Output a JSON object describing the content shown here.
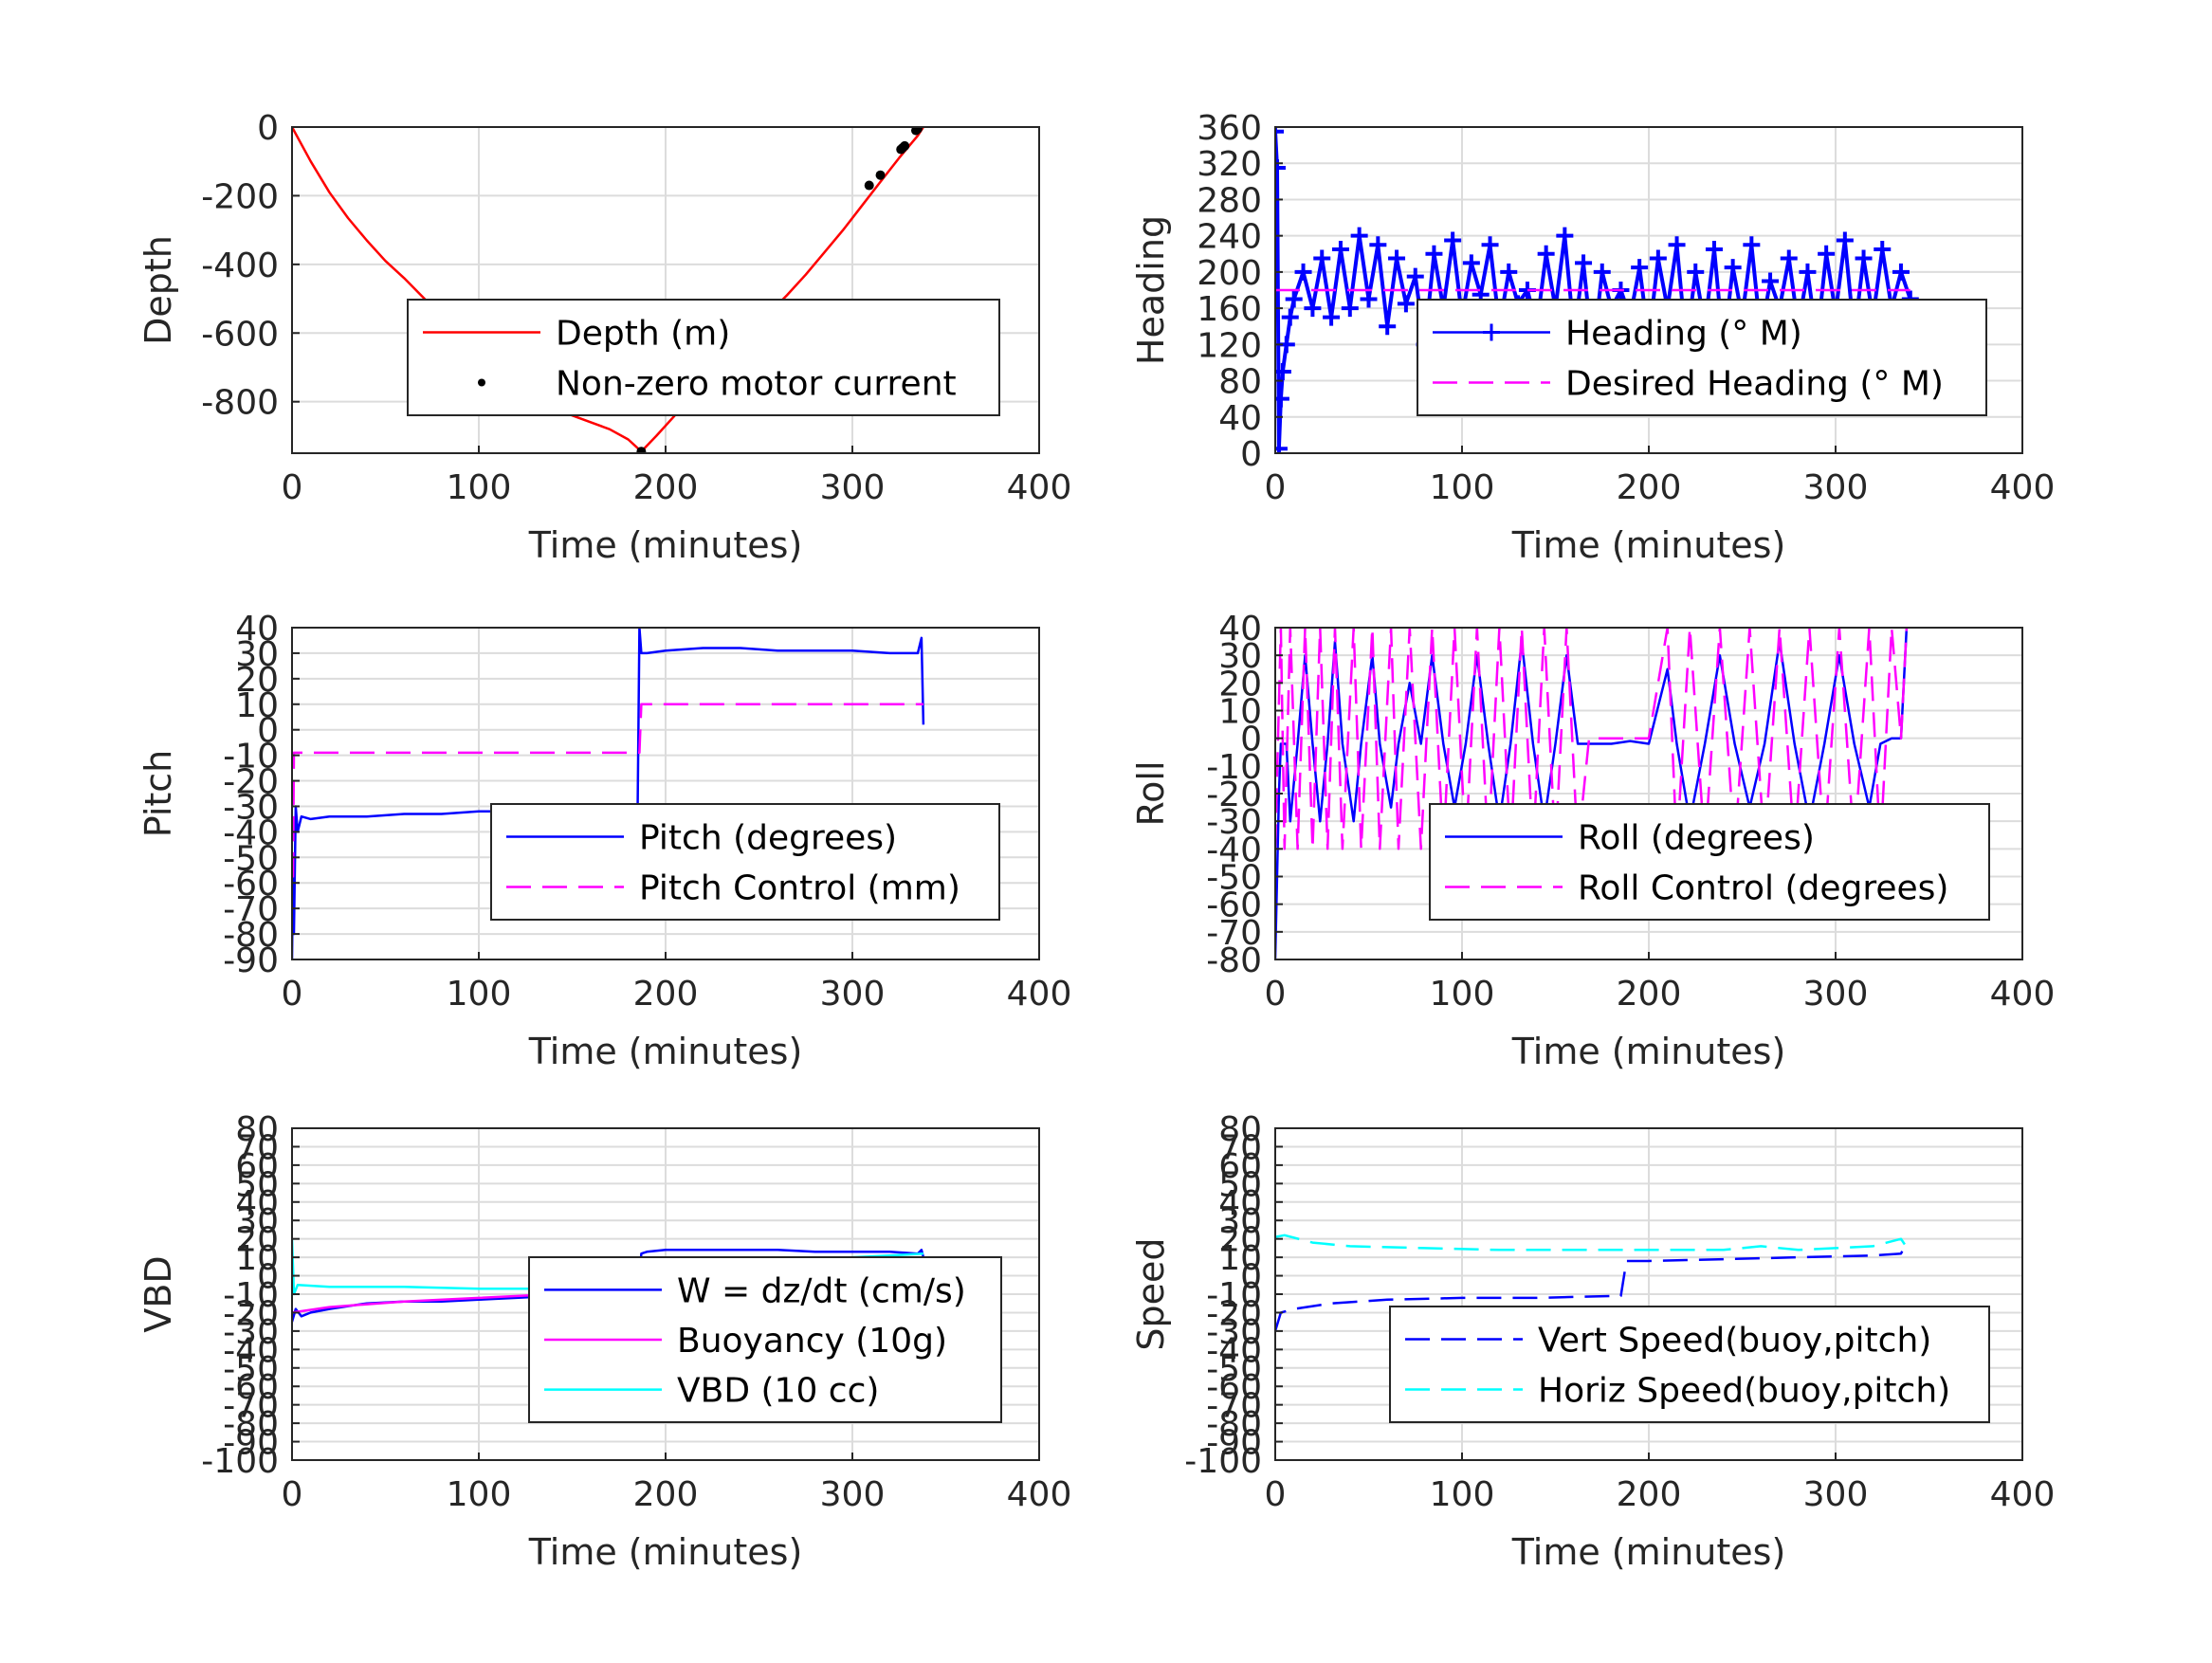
{
  "figure": {
    "background": "#ffffff",
    "grid_color": "#dcdcdc",
    "axis_color": "#262626"
  },
  "chart_data": [
    {
      "id": "depth",
      "type": "line",
      "xlabel": "Time (minutes)",
      "ylabel": "Depth",
      "xlim": [
        0,
        400
      ],
      "ylim": [
        -950,
        0
      ],
      "xticks": [
        0,
        100,
        200,
        300,
        400
      ],
      "yticks": [
        -800,
        -600,
        -400,
        -200,
        0
      ],
      "grid": true,
      "legend": {
        "placement": "center-right"
      },
      "series": [
        {
          "name": "Depth (m)",
          "style": "solid",
          "color": "#ff0000",
          "marker": "none",
          "x": [
            0,
            10,
            20,
            30,
            40,
            50,
            60,
            70,
            80,
            90,
            100,
            110,
            120,
            130,
            140,
            150,
            160,
            170,
            180,
            187,
            195,
            205,
            215,
            225,
            235,
            245,
            255,
            265,
            275,
            285,
            295,
            305,
            315,
            325,
            335,
            338
          ],
          "y": [
            0,
            -100,
            -190,
            -265,
            -330,
            -390,
            -440,
            -495,
            -550,
            -600,
            -650,
            -695,
            -740,
            -780,
            -815,
            -840,
            -860,
            -880,
            -910,
            -945,
            -900,
            -840,
            -780,
            -720,
            -660,
            -600,
            -545,
            -490,
            -430,
            -365,
            -300,
            -230,
            -160,
            -90,
            -25,
            0
          ]
        },
        {
          "name": "Non-zero motor current",
          "style": "none",
          "color": "#000000",
          "marker": "dot",
          "x": [
            187,
            253,
            309,
            315,
            326,
            327,
            328,
            334,
            335
          ],
          "y": [
            -945,
            -530,
            -170,
            -140,
            -65,
            -60,
            -55,
            -10,
            -5
          ]
        }
      ]
    },
    {
      "id": "heading",
      "type": "line",
      "xlabel": "Time (minutes)",
      "ylabel": "Heading",
      "xlim": [
        0,
        400
      ],
      "ylim": [
        0,
        360
      ],
      "xticks": [
        0,
        100,
        200,
        300,
        400
      ],
      "yticks": [
        0,
        40,
        80,
        120,
        160,
        200,
        240,
        280,
        320,
        360
      ],
      "grid": true,
      "legend": {
        "placement": "center-right"
      },
      "series": [
        {
          "name": "Heading (° M)",
          "style": "marker",
          "color": "#0000ff",
          "marker": "plus",
          "x": [
            0,
            1,
            2,
            3,
            4,
            6,
            8,
            10,
            15,
            20,
            25,
            30,
            35,
            40,
            45,
            50,
            55,
            60,
            65,
            70,
            75,
            80,
            85,
            90,
            95,
            100,
            105,
            110,
            115,
            120,
            125,
            130,
            135,
            140,
            145,
            150,
            155,
            160,
            165,
            170,
            175,
            180,
            185,
            190,
            195,
            200,
            205,
            210,
            215,
            220,
            225,
            230,
            235,
            240,
            245,
            250,
            255,
            260,
            265,
            270,
            275,
            280,
            285,
            290,
            295,
            300,
            305,
            310,
            315,
            320,
            325,
            330,
            335,
            340
          ],
          "y": [
            355,
            315,
            5,
            60,
            90,
            120,
            150,
            170,
            200,
            160,
            215,
            150,
            225,
            160,
            240,
            170,
            230,
            140,
            215,
            165,
            195,
            120,
            220,
            160,
            235,
            150,
            210,
            175,
            230,
            140,
            200,
            165,
            180,
            140,
            220,
            160,
            240,
            130,
            210,
            110,
            200,
            160,
            180,
            150,
            205,
            125,
            215,
            160,
            230,
            120,
            200,
            140,
            225,
            115,
            205,
            150,
            230,
            130,
            190,
            160,
            215,
            140,
            200,
            125,
            220,
            155,
            235,
            130,
            215,
            150,
            225,
            160,
            200,
            170
          ]
        },
        {
          "name": "Desired Heading (° M)",
          "style": "dashed",
          "color": "#ff00ff",
          "marker": "none",
          "x": [
            0,
            340
          ],
          "y": [
            180,
            180
          ]
        }
      ]
    },
    {
      "id": "pitch",
      "type": "line",
      "xlabel": "Time (minutes)",
      "ylabel": "Pitch",
      "xlim": [
        0,
        400
      ],
      "ylim": [
        -90,
        40
      ],
      "xticks": [
        0,
        100,
        200,
        300,
        400
      ],
      "yticks": [
        -90,
        -80,
        -70,
        -60,
        -50,
        -40,
        -30,
        -20,
        -10,
        0,
        10,
        20,
        30,
        40
      ],
      "grid": true,
      "legend": {
        "placement": "center-right"
      },
      "series": [
        {
          "name": "Pitch (degrees)",
          "style": "solid",
          "color": "#0000ff",
          "marker": "none",
          "x": [
            0,
            0.5,
            1,
            2,
            3,
            5,
            10,
            20,
            40,
            60,
            80,
            100,
            120,
            140,
            160,
            180,
            185,
            186,
            187,
            190,
            200,
            220,
            240,
            260,
            280,
            300,
            320,
            335,
            337,
            338
          ],
          "y": [
            -90,
            -55,
            -80,
            -30,
            -40,
            -34,
            -35,
            -34,
            -34,
            -33,
            -33,
            -32,
            -32,
            -31,
            -31,
            -31,
            -32,
            40,
            30,
            30,
            31,
            32,
            32,
            31,
            31,
            31,
            30,
            30,
            36,
            2
          ]
        },
        {
          "name": "Pitch Control (mm)",
          "style": "dashed",
          "color": "#ff00ff",
          "marker": "none",
          "x": [
            0,
            0.5,
            1,
            186,
            187,
            338
          ],
          "y": [
            -20,
            -60,
            -9,
            -9,
            10,
            10
          ]
        }
      ]
    },
    {
      "id": "roll",
      "type": "line",
      "xlabel": "Time (minutes)",
      "ylabel": "Roll",
      "xlim": [
        0,
        400
      ],
      "ylim": [
        -80,
        40
      ],
      "xticks": [
        0,
        100,
        200,
        300,
        400
      ],
      "yticks": [
        -80,
        -70,
        -60,
        -50,
        -40,
        -30,
        -20,
        -10,
        0,
        10,
        20,
        30,
        40
      ],
      "grid": true,
      "legend": {
        "placement": "center-right"
      },
      "series": [
        {
          "name": "Roll (degrees)",
          "style": "solid",
          "color": "#0000ff",
          "marker": "none",
          "x": [
            0,
            2,
            3,
            6,
            8,
            12,
            16,
            20,
            24,
            28,
            32,
            36,
            42,
            46,
            52,
            56,
            62,
            66,
            72,
            78,
            84,
            90,
            96,
            102,
            108,
            114,
            120,
            126,
            132,
            138,
            144,
            150,
            156,
            162,
            168,
            174,
            180,
            190,
            200,
            210,
            215,
            222,
            230,
            238,
            246,
            254,
            262,
            270,
            278,
            286,
            294,
            302,
            310,
            318,
            324,
            330,
            335,
            338
          ],
          "y": [
            -80,
            -20,
            -2,
            -2,
            -30,
            -2,
            30,
            -2,
            -30,
            -2,
            35,
            -2,
            -30,
            -2,
            30,
            -2,
            -25,
            -2,
            20,
            -2,
            30,
            -2,
            -25,
            -2,
            30,
            -2,
            -30,
            -2,
            35,
            -2,
            -30,
            -2,
            30,
            -2,
            -2,
            -2,
            -2,
            -1,
            -2,
            25,
            -2,
            -30,
            -2,
            30,
            -2,
            -25,
            -2,
            35,
            -2,
            -30,
            -2,
            30,
            -2,
            -25,
            -2,
            0,
            0,
            40
          ]
        },
        {
          "name": "Roll Control (degrees)",
          "style": "dashed",
          "color": "#ff00ff",
          "marker": "none",
          "x": [
            0,
            3,
            5,
            8,
            12,
            16,
            20,
            24,
            28,
            32,
            36,
            42,
            46,
            52,
            56,
            62,
            66,
            72,
            78,
            84,
            90,
            96,
            102,
            108,
            114,
            120,
            126,
            132,
            138,
            144,
            150,
            156,
            162,
            168,
            174,
            180,
            190,
            200,
            210,
            215,
            222,
            230,
            238,
            246,
            254,
            262,
            270,
            278,
            286,
            294,
            302,
            310,
            318,
            324,
            330,
            335,
            338
          ],
          "y": [
            -40,
            40,
            -40,
            40,
            -40,
            40,
            -40,
            40,
            -40,
            40,
            -40,
            40,
            -40,
            40,
            -40,
            40,
            -40,
            40,
            -40,
            40,
            -40,
            40,
            -40,
            40,
            -40,
            40,
            -40,
            40,
            -40,
            40,
            -40,
            40,
            -40,
            0,
            0,
            0,
            0,
            0,
            40,
            -40,
            40,
            -40,
            40,
            -40,
            40,
            -40,
            40,
            -40,
            40,
            -40,
            40,
            -40,
            40,
            -40,
            40,
            0,
            40
          ]
        }
      ]
    },
    {
      "id": "vbd",
      "type": "line",
      "xlabel": "Time (minutes)",
      "ylabel": "VBD",
      "xlim": [
        0,
        400
      ],
      "ylim": [
        -100,
        80
      ],
      "xticks": [
        0,
        100,
        200,
        300,
        400
      ],
      "yticks": [
        -100,
        -90,
        -80,
        -70,
        -60,
        -50,
        -40,
        -30,
        -20,
        -10,
        0,
        10,
        20,
        30,
        40,
        50,
        60,
        70,
        80
      ],
      "grid": true,
      "legend": {
        "placement": "center-right"
      },
      "series": [
        {
          "name": "W = dz/dt (cm/s)",
          "style": "solid",
          "color": "#0000ff",
          "marker": "none",
          "x": [
            0,
            2,
            5,
            10,
            20,
            40,
            60,
            80,
            100,
            120,
            140,
            160,
            180,
            185,
            187,
            190,
            200,
            220,
            240,
            260,
            280,
            300,
            320,
            335,
            337,
            338
          ],
          "y": [
            -25,
            -18,
            -22,
            -20,
            -18,
            -15,
            -14,
            -14,
            -13,
            -12,
            -11,
            -10,
            -10,
            -10,
            12,
            13,
            14,
            14,
            14,
            14,
            13,
            13,
            13,
            12,
            14,
            10
          ]
        },
        {
          "name": "Buoyancy (10g)",
          "style": "solid",
          "color": "#ff00ff",
          "marker": "none",
          "x": [
            0,
            20,
            60,
            100,
            140,
            185,
            187,
            220,
            260,
            300,
            338
          ],
          "y": [
            -20,
            -17,
            -14,
            -12,
            -10,
            -9,
            7,
            7,
            8,
            8,
            9
          ]
        },
        {
          "name": "VBD (10 cc)",
          "style": "solid",
          "color": "#00ffff",
          "marker": "none",
          "x": [
            0,
            1,
            3,
            20,
            60,
            100,
            150,
            185,
            188,
            200,
            240,
            260,
            280,
            300,
            320,
            338
          ],
          "y": [
            20,
            -10,
            -5,
            -6,
            -6,
            -7,
            -7,
            -7,
            5,
            5,
            6,
            8,
            9,
            10,
            11,
            12
          ]
        }
      ]
    },
    {
      "id": "speed",
      "type": "line",
      "xlabel": "Time (minutes)",
      "ylabel": "Speed",
      "xlim": [
        0,
        400
      ],
      "ylim": [
        -100,
        80
      ],
      "xticks": [
        0,
        100,
        200,
        300,
        400
      ],
      "yticks": [
        -100,
        -90,
        -80,
        -70,
        -60,
        -50,
        -40,
        -30,
        -20,
        -10,
        0,
        10,
        20,
        30,
        40,
        50,
        60,
        70,
        80
      ],
      "grid": true,
      "legend": {
        "placement": "lower-right"
      },
      "series": [
        {
          "name": "Vert Speed(buoy,pitch)",
          "style": "dashed",
          "color": "#0000ff",
          "marker": "none",
          "x": [
            0,
            3,
            10,
            30,
            60,
            100,
            140,
            180,
            185,
            188,
            200,
            240,
            280,
            320,
            335,
            337
          ],
          "y": [
            -30,
            -20,
            -18,
            -15,
            -13,
            -12,
            -12,
            -11,
            -11,
            8,
            8,
            9,
            10,
            11,
            12,
            16
          ]
        },
        {
          "name": "Horiz Speed(buoy,pitch)",
          "style": "dashed",
          "color": "#00ffff",
          "marker": "none",
          "x": [
            0,
            5,
            20,
            40,
            80,
            120,
            160,
            200,
            240,
            260,
            280,
            300,
            320,
            335,
            337
          ],
          "y": [
            21,
            22,
            18,
            16,
            15,
            14,
            14,
            14,
            14,
            16,
            14,
            15,
            16,
            20,
            17
          ]
        }
      ]
    }
  ]
}
